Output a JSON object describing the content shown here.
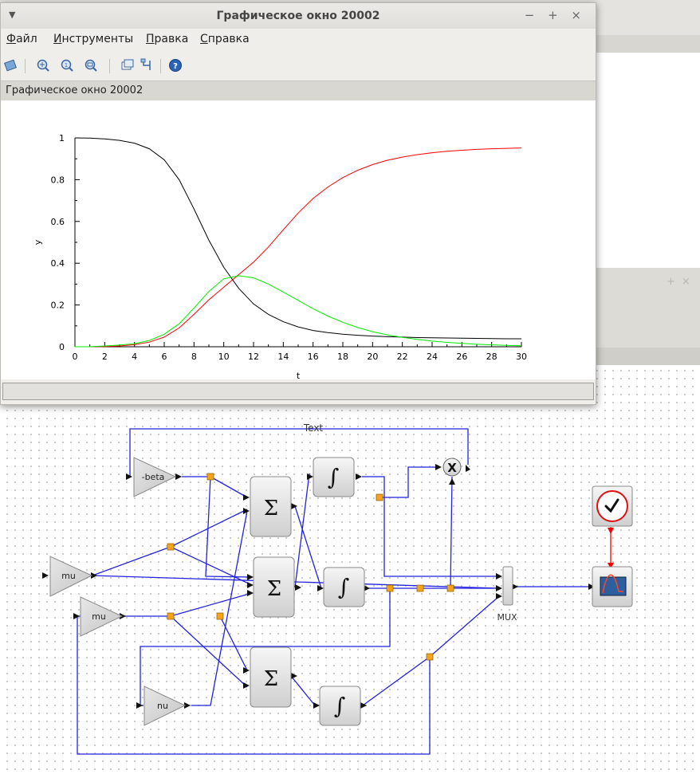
{
  "graphic_window": {
    "title": "Графическое окно 20002",
    "window_buttons": "− + ×",
    "figure_label": "Графическое окно 20002",
    "menu": [
      {
        "mnemonic": "Ф",
        "rest": "айл"
      },
      {
        "mnemonic": "И",
        "rest": "нструменты"
      },
      {
        "mnemonic": "П",
        "rest": "равка"
      },
      {
        "mnemonic": "С",
        "rest": "правка"
      }
    ],
    "toolbar_icons": [
      "rotate-icon",
      "zoom-in-icon",
      "zoom-reset-icon",
      "zoom-area-icon",
      "new-window-icon",
      "data-tips-icon",
      "help-icon"
    ]
  },
  "chart_data": {
    "type": "line",
    "xlabel": "t",
    "ylabel": "y",
    "xlim": [
      0,
      30
    ],
    "ylim": [
      0,
      1
    ],
    "xticks": [
      0,
      2,
      4,
      6,
      8,
      10,
      12,
      14,
      16,
      18,
      20,
      22,
      24,
      26,
      28,
      30
    ],
    "yticks": [
      0,
      0.2,
      0.4,
      0.6,
      0.8,
      1
    ],
    "x": [
      0,
      1,
      2,
      3,
      4,
      5,
      6,
      7,
      8,
      9,
      10,
      11,
      12,
      13,
      14,
      15,
      16,
      17,
      18,
      19,
      20,
      21,
      22,
      23,
      24,
      25,
      26,
      27,
      28,
      29,
      30
    ],
    "series": [
      {
        "color": "#000000",
        "values": [
          1.0,
          0.999,
          0.995,
          0.988,
          0.975,
          0.948,
          0.895,
          0.8,
          0.66,
          0.51,
          0.38,
          0.28,
          0.205,
          0.155,
          0.12,
          0.095,
          0.078,
          0.068,
          0.06,
          0.055,
          0.051,
          0.048,
          0.046,
          0.044,
          0.043,
          0.042,
          0.041,
          0.04,
          0.039,
          0.038,
          0.038
        ]
      },
      {
        "color": "#ff0000",
        "values": [
          0.0,
          0.0,
          0.001,
          0.004,
          0.01,
          0.022,
          0.046,
          0.09,
          0.155,
          0.225,
          0.285,
          0.345,
          0.405,
          0.478,
          0.56,
          0.64,
          0.71,
          0.765,
          0.81,
          0.845,
          0.872,
          0.893,
          0.908,
          0.92,
          0.929,
          0.936,
          0.941,
          0.945,
          0.948,
          0.95,
          0.952
        ]
      },
      {
        "color": "#00ee00",
        "values": [
          0.0,
          0.0,
          0.004,
          0.008,
          0.015,
          0.03,
          0.06,
          0.11,
          0.185,
          0.265,
          0.325,
          0.34,
          0.33,
          0.3,
          0.262,
          0.222,
          0.182,
          0.147,
          0.117,
          0.092,
          0.072,
          0.057,
          0.045,
          0.035,
          0.027,
          0.021,
          0.016,
          0.012,
          0.009,
          0.007,
          0.005
        ]
      }
    ]
  },
  "diagram": {
    "text_block": "Text",
    "gains": {
      "beta": "-beta",
      "mu1": "mu",
      "mu2": "mu",
      "nu": "nu"
    },
    "sum_symbol": "Σ",
    "integral_symbol": "∫",
    "product_symbol": "X",
    "mux_label": "MUX",
    "colors": {
      "link": "#2222dd",
      "event_link": "#ff0000",
      "split": "#f4a31b"
    }
  }
}
